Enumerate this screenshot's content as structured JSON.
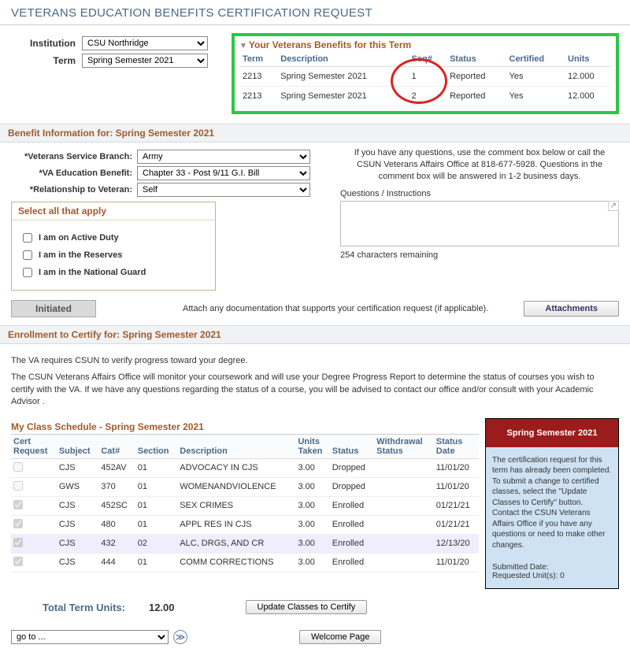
{
  "page_title": "VETERANS EDUCATION BENEFITS CERTIFICATION REQUEST",
  "controls": {
    "institution_label": "Institution",
    "institution_value": "CSU Northridge",
    "term_label": "Term",
    "term_value": "Spring Semester 2021"
  },
  "benefits_box": {
    "title": "Your Veterans Benefits for this Term",
    "columns": [
      "Term",
      "Description",
      "Seq#",
      "Status",
      "Certified",
      "Units"
    ],
    "rows": [
      {
        "term": "2213",
        "desc": "Spring Semester 2021",
        "seq": "1",
        "status": "Reported",
        "cert": "Yes",
        "units": "12.000"
      },
      {
        "term": "2213",
        "desc": "Spring Semester 2021",
        "seq": "2",
        "status": "Reported",
        "cert": "Yes",
        "units": "12.000"
      }
    ],
    "highlight_border_color": "#2ec44a",
    "circle_color": "#d22"
  },
  "benefit_info": {
    "heading": "Benefit Information for:  Spring Semester 2021",
    "branch_label": "*Veterans Service Branch:",
    "branch_value": "Army",
    "va_benefit_label": "*VA Education Benefit:",
    "va_benefit_value": "Chapter 33 - Post 9/11 G.I. Bill",
    "relation_label": "*Relationship to Veteran:",
    "relation_value": "Self",
    "apply_heading": "Select all that apply",
    "apply_options": [
      "I am on Active Duty",
      "I am in the Reserves",
      "I am in the National Guard"
    ],
    "help_text": "If you have any questions, use the comment box below or call the CSUN Veterans Affairs Office at 818-677-5928. Questions in the comment box will be answered in 1-2 business days.",
    "qi_label": "Questions / Instructions",
    "remaining": "254 characters remaining",
    "initiated_label": "Initiated",
    "attach_note": "Attach any documentation that supports your certification request (if applicable).",
    "attachments_label": "Attachments"
  },
  "enroll": {
    "heading": "Enrollment to Certify for:  Spring Semester 2021",
    "p1": "The VA requires CSUN to verify progress toward your degree.",
    "p2": "The CSUN Veterans Affairs Office will monitor your coursework and will use your Degree Progress Report to determine the status of courses you wish to certify with the VA. If we have any questions regarding the status of a course, you will be advised to contact our office and/or consult with your Academic Advisor ."
  },
  "schedule": {
    "title": "My Class Schedule - Spring Semester 2021",
    "columns": [
      "Cert Request",
      "Subject",
      "Cat#",
      "Section",
      "Description",
      "Units Taken",
      "Status",
      "Withdrawal Status",
      "Status Date"
    ],
    "rows": [
      {
        "checked": false,
        "subj": "CJS",
        "cat": "452AV",
        "sec": "01",
        "desc": "ADVOCACY IN CJS",
        "units": "3.00",
        "status": "Dropped",
        "wstatus": "",
        "sdate": "11/01/20"
      },
      {
        "checked": false,
        "subj": "GWS",
        "cat": "370",
        "sec": "01",
        "desc": "WOMENANDVIOLENCE",
        "units": "3.00",
        "status": "Dropped",
        "wstatus": "",
        "sdate": "11/01/20"
      },
      {
        "checked": true,
        "subj": "CJS",
        "cat": "452SC",
        "sec": "01",
        "desc": "SEX CRIMES",
        "units": "3.00",
        "status": "Enrolled",
        "wstatus": "",
        "sdate": "01/21/21"
      },
      {
        "checked": true,
        "subj": "CJS",
        "cat": "480",
        "sec": "01",
        "desc": "APPL RES IN CJS",
        "units": "3.00",
        "status": "Enrolled",
        "wstatus": "",
        "sdate": "01/21/21"
      },
      {
        "checked": true,
        "subj": "CJS",
        "cat": "432",
        "sec": "02",
        "desc": "ALC, DRGS, AND CR",
        "units": "3.00",
        "status": "Enrolled",
        "wstatus": "",
        "sdate": "12/13/20",
        "highlight": true
      },
      {
        "checked": true,
        "subj": "CJS",
        "cat": "444",
        "sec": "01",
        "desc": "COMM CORRECTIONS",
        "units": "3.00",
        "status": "Enrolled",
        "wstatus": "",
        "sdate": "11/01/20"
      }
    ],
    "total_label": "Total Term Units:",
    "total_value": "12.00",
    "update_btn": "Update Classes to Certify"
  },
  "callout": {
    "heading": "Spring Semester 2021",
    "body": "The certification request for this term has already been completed. To submit a change to certified classes, select the \"Update Classes to Certify\" button. Contact the CSUN Veterans Affairs Office if you have any questions or need to make other changes.",
    "submitted": "Submitted Date:",
    "requested": "Requested Unit(s): 0"
  },
  "bottom": {
    "goto_value": "go to ...",
    "welcome": "Welcome Page"
  }
}
